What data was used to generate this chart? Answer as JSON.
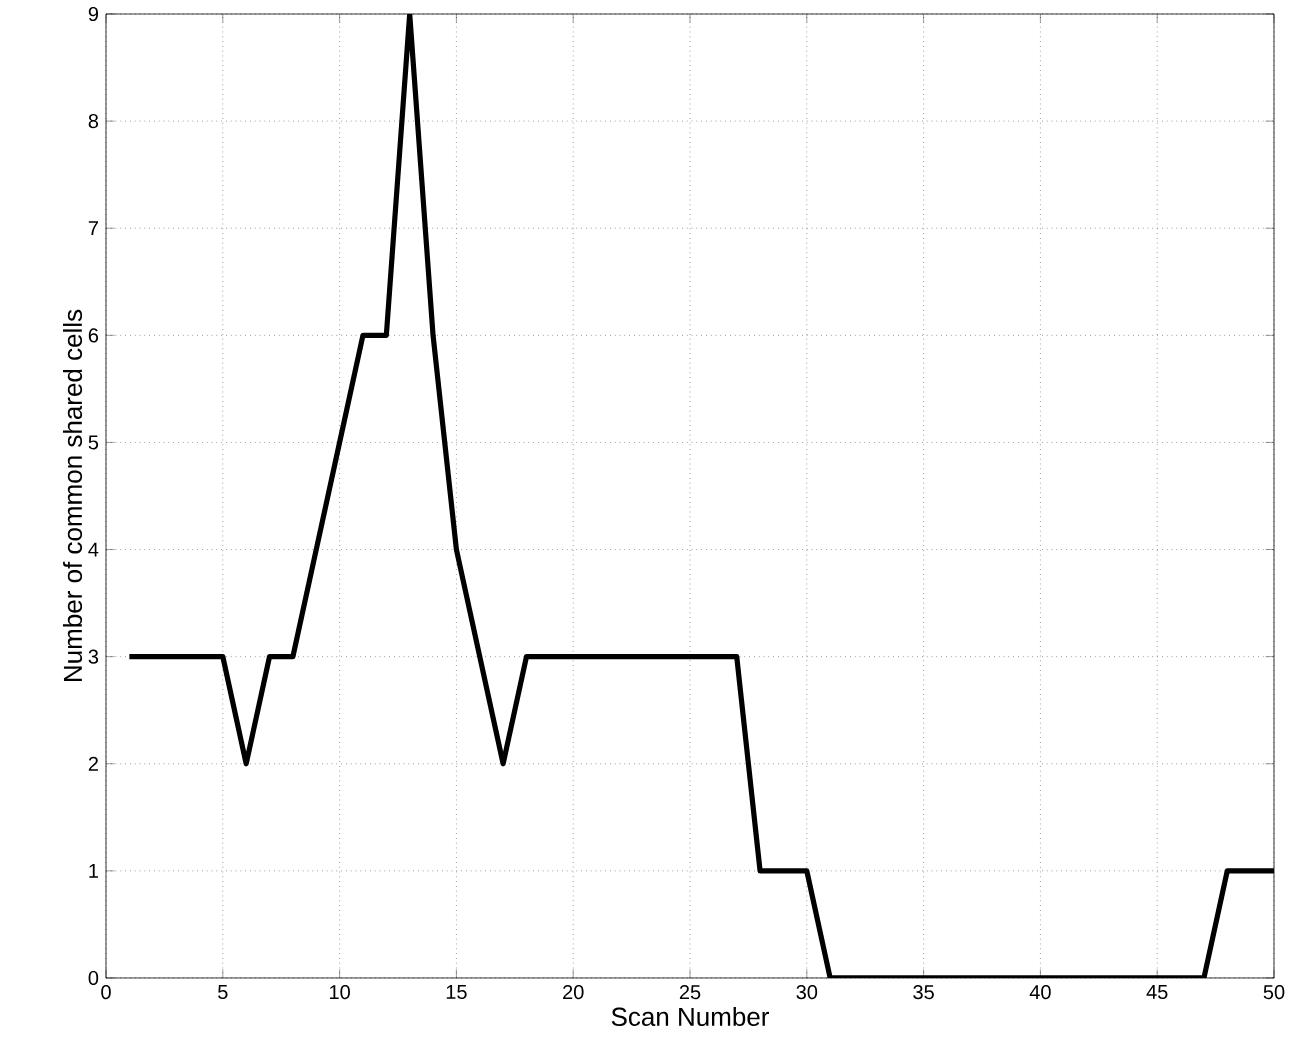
{
  "chart_data": {
    "type": "line",
    "xlabel": "Scan Number",
    "ylabel": "Number of common shared cells",
    "x": [
      1,
      2,
      3,
      4,
      5,
      6,
      7,
      8,
      9,
      10,
      11,
      12,
      13,
      14,
      15,
      16,
      17,
      18,
      19,
      20,
      21,
      22,
      23,
      24,
      25,
      26,
      27,
      28,
      29,
      30,
      31,
      32,
      33,
      34,
      35,
      36,
      37,
      38,
      39,
      40,
      41,
      42,
      43,
      44,
      45,
      46,
      47,
      48,
      49,
      50
    ],
    "values": [
      3,
      3,
      3,
      3,
      3,
      2,
      3,
      3,
      4,
      5,
      6,
      6,
      9,
      6,
      4,
      3,
      2,
      3,
      3,
      3,
      3,
      3,
      3,
      3,
      3,
      3,
      3,
      1,
      1,
      1,
      0,
      0,
      0,
      0,
      0,
      0,
      0,
      0,
      0,
      0,
      0,
      0,
      0,
      0,
      0,
      0,
      0,
      1,
      1,
      1
    ],
    "color": "#000000",
    "xlim": [
      0,
      50
    ],
    "ylim": [
      0,
      9
    ],
    "xticks": [
      0,
      5,
      10,
      15,
      20,
      25,
      30,
      35,
      40,
      45,
      50
    ],
    "yticks": [
      0,
      1,
      2,
      3,
      4,
      5,
      6,
      7,
      8,
      9
    ],
    "grid": true
  }
}
